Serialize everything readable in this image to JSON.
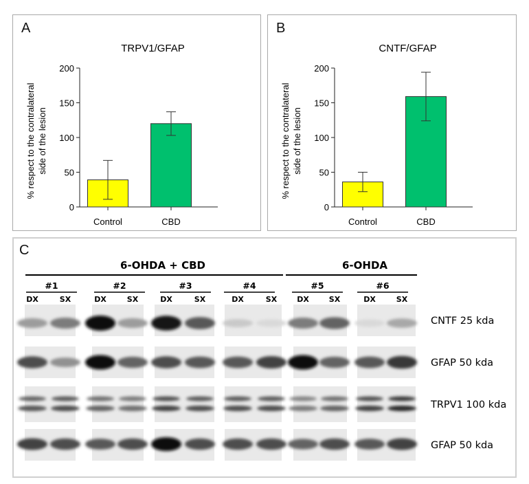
{
  "chart_data": [
    {
      "type": "bar",
      "panel_letter": "A",
      "title": "TRPV1/GFAP",
      "ylabel_lines": [
        "% respect to the contralateral",
        "side of the lesion"
      ],
      "xlabel": "",
      "ylim": [
        0,
        200
      ],
      "yticks": [
        "0",
        "50",
        "100",
        "150",
        "200"
      ],
      "categories": [
        "Control",
        "CBD"
      ],
      "values": [
        39,
        120
      ],
      "errors": [
        28,
        17
      ],
      "colors": [
        "#ffff00",
        "#00c06e"
      ]
    },
    {
      "type": "bar",
      "panel_letter": "B",
      "title": "CNTF/GFAP",
      "ylabel_lines": [
        "% respect to the contralateral",
        "side of the lesion"
      ],
      "xlabel": "",
      "ylim": [
        0,
        200
      ],
      "yticks": [
        "0",
        "50",
        "100",
        "150",
        "200"
      ],
      "categories": [
        "Control",
        "CBD"
      ],
      "values": [
        36,
        159
      ],
      "errors": [
        14,
        35
      ],
      "colors": [
        "#ffff00",
        "#00c06e"
      ]
    }
  ],
  "blot": {
    "panel_letter": "C",
    "group_labels": [
      "6-OHDA + CBD",
      "6-OHDA"
    ],
    "samples": [
      "#1",
      "#2",
      "#3",
      "#4",
      "#5",
      "#6"
    ],
    "sides": [
      "DX",
      "SX"
    ],
    "row_labels": [
      "CNTF 25 kda",
      "GFAP 50 kda",
      "TRPV1 100 kda",
      "GFAP 50 kda"
    ],
    "intensities": {
      "cntf": [
        0.35,
        0.5,
        1.0,
        0.35,
        0.95,
        0.65,
        0.15,
        0.08,
        0.5,
        0.6,
        0.08,
        0.3
      ],
      "gfap1": [
        0.7,
        0.4,
        1.0,
        0.6,
        0.7,
        0.65,
        0.65,
        0.75,
        1.0,
        0.6,
        0.65,
        0.8
      ],
      "trpv1": [
        0.65,
        0.7,
        0.6,
        0.55,
        0.75,
        0.7,
        0.7,
        0.7,
        0.5,
        0.6,
        0.75,
        0.85
      ],
      "gfap2": [
        0.75,
        0.7,
        0.65,
        0.7,
        1.0,
        0.7,
        0.7,
        0.7,
        0.6,
        0.7,
        0.65,
        0.75
      ]
    }
  }
}
